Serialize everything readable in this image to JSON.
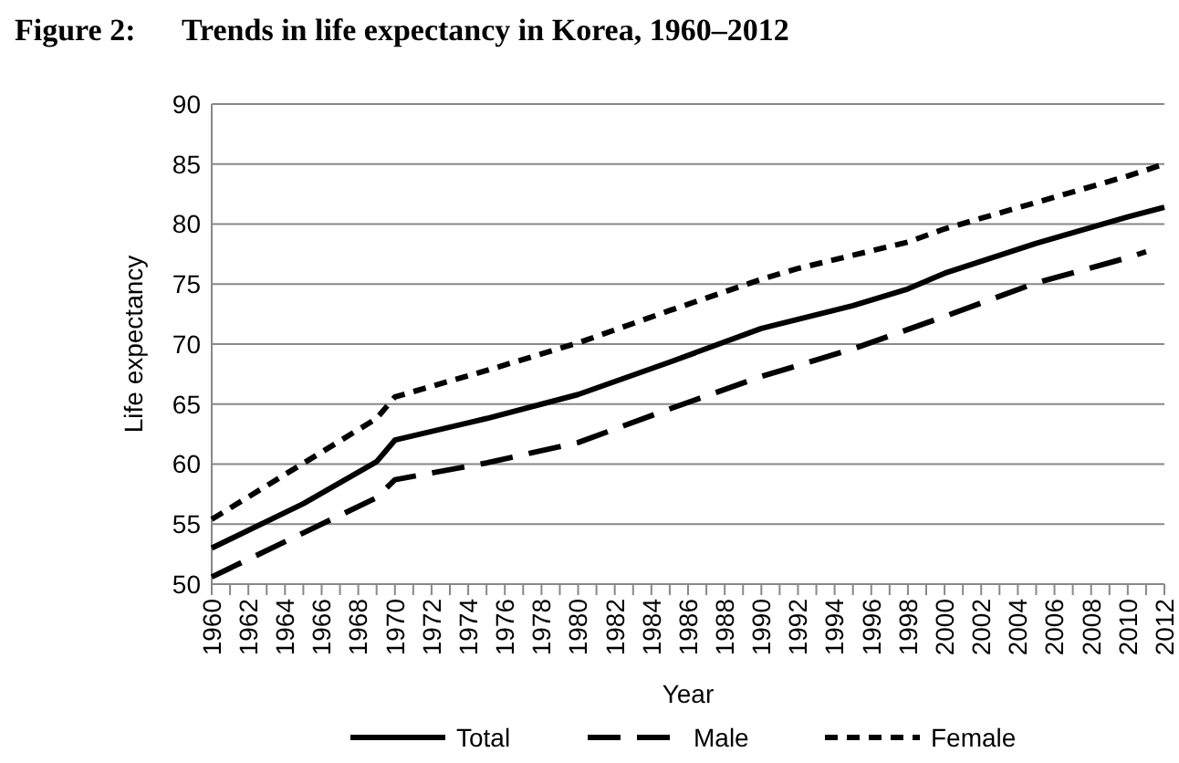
{
  "chart_data": {
    "type": "line",
    "title": "Figure 2:      Trends in life expectancy in Korea, 1960–2012",
    "xlabel": "Year",
    "ylabel": "Life expectancy",
    "xlim": [
      1960,
      2012
    ],
    "ylim": [
      50,
      90
    ],
    "yticks": [
      50,
      55,
      60,
      65,
      70,
      75,
      80,
      85,
      90
    ],
    "xticks": [
      1960,
      {
        "value": 1961,
        "label": null
      },
      1962,
      {
        "value": 1963,
        "label": null
      },
      1964,
      {
        "value": 1965,
        "label": null
      },
      1966,
      {
        "value": 1967,
        "label": null
      },
      1968,
      {
        "value": 1969,
        "label": null
      },
      1970,
      {
        "value": 1971,
        "label": null
      },
      1972,
      {
        "value": 1973,
        "label": null
      },
      1974,
      {
        "value": 1975,
        "label": null
      },
      1976,
      {
        "value": 1977,
        "label": null
      },
      1978,
      {
        "value": 1979,
        "label": null
      },
      1980,
      {
        "value": 1981,
        "label": null
      },
      1982,
      {
        "value": 1983,
        "label": null
      },
      1984,
      {
        "value": 1985,
        "label": null
      },
      1986,
      {
        "value": 1987,
        "label": null
      },
      1988,
      {
        "value": 1989,
        "label": null
      },
      1990,
      {
        "value": 1991,
        "label": null
      },
      1992,
      {
        "value": 1993,
        "label": null
      },
      1994,
      {
        "value": 1995,
        "label": null
      },
      1996,
      {
        "value": 1997,
        "label": null
      },
      1998,
      {
        "value": 1999,
        "label": null
      },
      2000,
      {
        "value": 2001,
        "label": null
      },
      2002,
      {
        "value": 2003,
        "label": null
      },
      2004,
      {
        "value": 2005,
        "label": null
      },
      2006,
      {
        "value": 2007,
        "label": null
      },
      2008,
      {
        "value": 2009,
        "label": null
      },
      2010,
      {
        "value": 2011,
        "label": null
      },
      2012
    ],
    "grid": "y",
    "legend": "bottom",
    "series": [
      {
        "name": "Total",
        "color": "#000000",
        "line_style": "solid",
        "x": [
          1960,
          1965,
          1969,
          1970,
          1975,
          1980,
          1985,
          1990,
          1995,
          1998,
          2000,
          2005,
          2010,
          2012
        ],
        "values": [
          53,
          56.7,
          60.2,
          62,
          63.8,
          65.8,
          68.5,
          71.3,
          73.2,
          74.6,
          75.9,
          78.4,
          80.6,
          81.4
        ]
      },
      {
        "name": "Male",
        "color": "#000000",
        "line_style": "dashed",
        "x": [
          1960,
          1969,
          1970,
          1975,
          1980,
          1985,
          1990,
          1995,
          2000,
          2005,
          2010,
          2011
        ],
        "values": [
          50.6,
          57.2,
          58.7,
          60.1,
          61.8,
          64.6,
          67.3,
          69.6,
          72.3,
          75.1,
          77.2,
          77.7
        ]
      },
      {
        "name": "Female",
        "color": "#000000",
        "line_style": "dotted",
        "x": [
          1960,
          1969,
          1970,
          1975,
          1980,
          1985,
          1990,
          1992,
          1995,
          1998,
          2000,
          2005,
          2010,
          2012
        ],
        "values": [
          55.4,
          63.8,
          65.6,
          67.8,
          70.1,
          72.8,
          75.4,
          76.3,
          77.4,
          78.5,
          79.6,
          81.8,
          84,
          85
        ]
      }
    ]
  }
}
